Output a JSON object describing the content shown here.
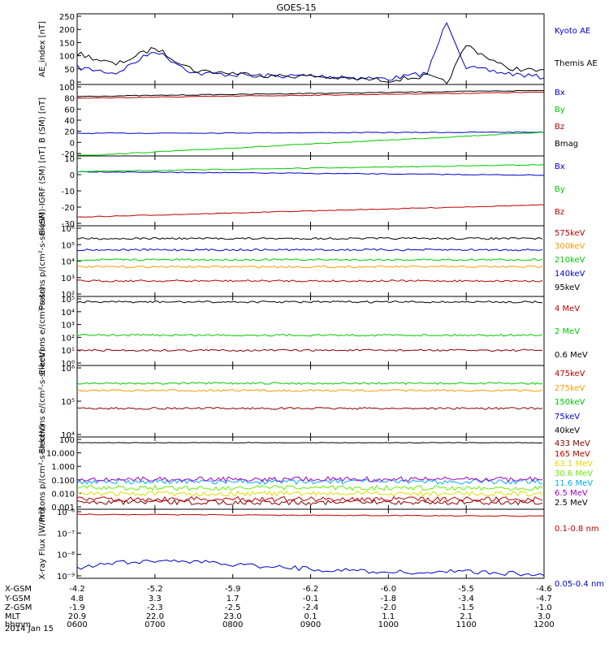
{
  "title": "GOES-15",
  "date_label": "2014 Jan 15",
  "colors": {
    "black": "#000000",
    "blue": "#0000cc",
    "green": "#00c800",
    "red": "#bb0000",
    "orange": "#ff9900",
    "cyan": "#00aaff",
    "yellow": "#dddd00",
    "magenta": "#a000c0",
    "lime": "#66ee00",
    "darkred": "#880000"
  },
  "chart_data": [
    {
      "type": "line",
      "ylabel": "AE_index [nT]",
      "ylim": [
        0,
        250
      ],
      "yticks": [
        "250",
        "200",
        "150",
        "100",
        "50",
        "0"
      ],
      "legend": [
        "Kyoto AE",
        "Themis AE"
      ],
      "series": [
        {
          "name": "Kyoto AE",
          "color": "blue",
          "x": [
            "0600",
            "0630",
            "0700",
            "0730",
            "0800",
            "0830",
            "0900",
            "0930",
            "1000",
            "1030",
            "1045",
            "1100",
            "1130",
            "1200"
          ],
          "values": [
            60,
            40,
            120,
            40,
            35,
            30,
            30,
            25,
            20,
            40,
            225,
            60,
            40,
            25
          ]
        },
        {
          "name": "Themis AE",
          "color": "black",
          "x": [
            "0600",
            "0630",
            "0700",
            "0730",
            "0800",
            "0830",
            "0900",
            "0930",
            "1000",
            "1030",
            "1045",
            "1100",
            "1130",
            "1200"
          ],
          "values": [
            110,
            70,
            130,
            50,
            40,
            30,
            30,
            20,
            15,
            30,
            5,
            140,
            60,
            45
          ]
        }
      ]
    },
    {
      "type": "line",
      "ylabel": "B (SM) [nT]",
      "ylim": [
        -20,
        100
      ],
      "yticks": [
        "100",
        "80",
        "60",
        "40",
        "20",
        "0",
        "-20"
      ],
      "legend": [
        "Bx",
        "By",
        "Bz",
        "Bmag"
      ],
      "series": [
        {
          "name": "Bx",
          "color": "blue",
          "x": [
            "0600",
            "1200"
          ],
          "values": [
            18,
            20
          ]
        },
        {
          "name": "By",
          "color": "green",
          "x": [
            "0600",
            "1200"
          ],
          "values": [
            -20,
            20
          ]
        },
        {
          "name": "Bz",
          "color": "red",
          "x": [
            "0600",
            "1200"
          ],
          "values": [
            77,
            87
          ]
        },
        {
          "name": "Bmag",
          "color": "black",
          "x": [
            "0600",
            "1200"
          ],
          "values": [
            80,
            90
          ]
        }
      ]
    },
    {
      "type": "line",
      "ylabel": "B (SM)-IGRF (SM) [nT]",
      "ylim": [
        -30,
        10
      ],
      "yticks": [
        "10",
        "0",
        "-10",
        "-20",
        "-30"
      ],
      "legend": [
        "Bx",
        "By",
        "Bz"
      ],
      "series": [
        {
          "name": "Bx",
          "color": "blue",
          "x": [
            "0600",
            "1200"
          ],
          "values": [
            1,
            -1
          ]
        },
        {
          "name": "By",
          "color": "green",
          "x": [
            "0600",
            "1200"
          ],
          "values": [
            1,
            5
          ]
        },
        {
          "name": "Bz",
          "color": "red",
          "x": [
            "0600",
            "1200"
          ],
          "values": [
            -25,
            -18
          ]
        }
      ]
    },
    {
      "type": "line",
      "ylabel": "Protons p/(cm²-s-sr-keV)",
      "log": true,
      "ylim": [
        1,
        6
      ],
      "yticks": [
        "10⁶",
        "10⁵",
        "10⁴",
        "10³",
        "10²"
      ],
      "legend": [
        "575keV",
        "300keV",
        "210keV",
        "140keV",
        "95keV"
      ],
      "series": [
        {
          "name": "575keV",
          "color": "red",
          "values": [
            2.1
          ]
        },
        {
          "name": "300keV",
          "color": "orange",
          "values": [
            3.1
          ]
        },
        {
          "name": "210keV",
          "color": "green",
          "values": [
            3.6
          ]
        },
        {
          "name": "140keV",
          "color": "blue",
          "values": [
            4.3
          ]
        },
        {
          "name": "95keV",
          "color": "black",
          "values": [
            5.1
          ]
        }
      ]
    },
    {
      "type": "line",
      "ylabel": "Electrons e/(cm²-s-sr)",
      "log": true,
      "ylim": [
        0,
        5
      ],
      "yticks": [
        "10⁵",
        "10⁴",
        "10³",
        "10²",
        "10¹",
        "10⁰"
      ],
      "legend": [
        "4 MeV",
        "2 MeV",
        "0.6 MeV"
      ],
      "series": [
        {
          "name": "4 MeV",
          "color": "darkred",
          "values": [
            1.1
          ]
        },
        {
          "name": "2 MeV",
          "color": "green",
          "values": [
            2.2
          ]
        },
        {
          "name": "0.6 MeV",
          "color": "black",
          "values": [
            4.6
          ]
        }
      ]
    },
    {
      "type": "line",
      "ylabel": "Electrons e/(cm²-s-sr-keV)",
      "log": true,
      "ylim": [
        4,
        6
      ],
      "yticks": [
        "10⁶",
        "10⁵",
        "10⁴"
      ],
      "legend": [
        "475keV",
        "275keV",
        "150keV",
        "75keV",
        "40keV"
      ],
      "series": [
        {
          "name": "475keV",
          "color": "darkred",
          "values": [
            4.8
          ]
        },
        {
          "name": "275keV",
          "color": "orange",
          "values": [
            5.3
          ]
        },
        {
          "name": "150keV",
          "color": "green",
          "values": [
            5.5
          ]
        }
      ]
    },
    {
      "type": "line",
      "ylabel": "Protons p/(cm²-s-sr-keV)",
      "log": true,
      "ylim": [
        0.001,
        100
      ],
      "yticks": [
        "100",
        "10.000",
        "1.000",
        "0.100",
        "0.010",
        "0.001"
      ],
      "legend": [
        "433 MeV",
        "165 MeV",
        "63.1 MeV",
        "30.6 MeV",
        "11.6 MeV",
        "6.5 MeV",
        "2.5 MeV"
      ],
      "series": [
        {
          "name": "433 MeV",
          "color": "darkred",
          "values": [
            0.003
          ]
        },
        {
          "name": "165 MeV",
          "color": "red",
          "values": [
            0.005
          ]
        },
        {
          "name": "63.1 MeV",
          "color": "yellow",
          "values": [
            0.012
          ]
        },
        {
          "name": "30.6 MeV",
          "color": "lime",
          "values": [
            0.03
          ]
        },
        {
          "name": "11.6 MeV",
          "color": "cyan",
          "values": [
            0.08
          ]
        },
        {
          "name": "6.5 MeV",
          "color": "magenta",
          "values": [
            0.12
          ]
        },
        {
          "name": "2.5 MeV",
          "color": "black",
          "values": [
            40
          ]
        }
      ]
    },
    {
      "type": "line",
      "ylabel": "X-ray Flux [W/m²]",
      "log": true,
      "ylim": [
        1e-09,
        1e-06
      ],
      "yticks": [
        "10⁻⁶",
        "10⁻⁷",
        "10⁻⁸",
        "10⁻⁹"
      ],
      "legend": [
        "0.1-0.8 nm",
        "0.05-0.4 nm"
      ],
      "series": [
        {
          "name": "0.1-0.8 nm",
          "color": "red",
          "x": [
            "0600",
            "1200"
          ],
          "values": [
            6e-07,
            5e-07
          ]
        },
        {
          "name": "0.05-0.4 nm",
          "color": "blue",
          "x": [
            "0600",
            "0700",
            "0800",
            "0900",
            "1000",
            "1100",
            "1200"
          ],
          "values": [
            3e-09,
            6e-09,
            4e-09,
            2.5e-09,
            1.8e-09,
            2e-09,
            1.3e-09
          ]
        }
      ]
    }
  ],
  "x_axis_table": {
    "labels": [
      "X-GSM",
      "Y-GSM",
      "Z-GSM",
      "MLT",
      "hhmm"
    ],
    "columns": [
      [
        "-4.2",
        "4.8",
        "-1.9",
        "20.9",
        "0600"
      ],
      [
        "-5.2",
        "3.3",
        "-2.3",
        "22.0",
        "0700"
      ],
      [
        "-5.9",
        "1.7",
        "-2.5",
        "23.0",
        "0800"
      ],
      [
        "-6.2",
        "-0.1",
        "-2.4",
        "0.1",
        "0900"
      ],
      [
        "-6.0",
        "-1.8",
        "-2.0",
        "1.1",
        "1000"
      ],
      [
        "-5.5",
        "-3.4",
        "-1.5",
        "2.1",
        "1100"
      ],
      [
        "-4.6",
        "-4.7",
        "-1.0",
        "3.0",
        "1200"
      ]
    ]
  }
}
